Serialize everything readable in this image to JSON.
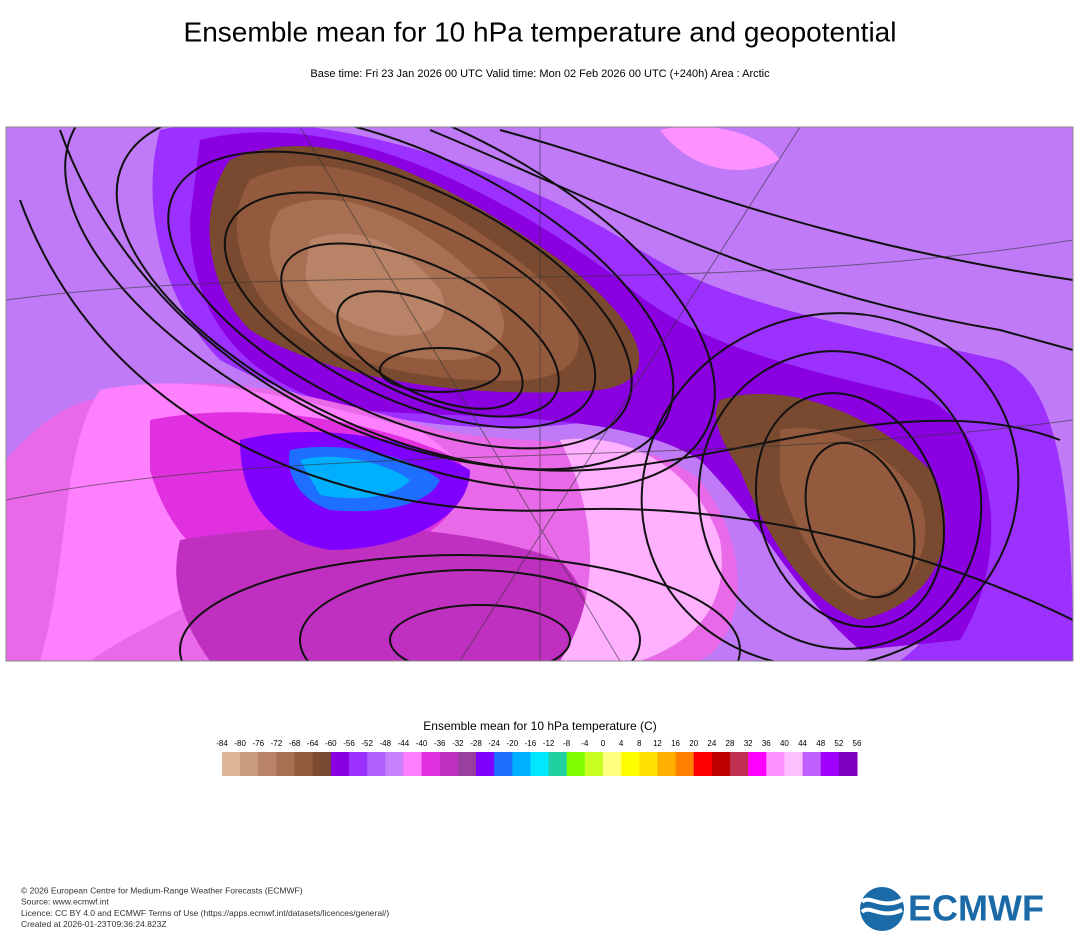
{
  "header": {
    "title": "Ensemble mean for 10 hPa temperature and geopotential",
    "subtitle": "Base time: Fri 23 Jan 2026 00 UTC Valid time: Mon 02 Feb 2026 00 UTC (+240h) Area : Arctic"
  },
  "colorbar": {
    "title": "Ensemble mean for 10 hPa temperature (C)",
    "ticks": [
      -84,
      -80,
      -76,
      -72,
      -68,
      -64,
      -60,
      -56,
      -52,
      -48,
      -44,
      -40,
      -36,
      -32,
      -28,
      -24,
      -20,
      -16,
      -12,
      -8,
      -4,
      0,
      4,
      8,
      12,
      16,
      20,
      24,
      28,
      32,
      36,
      40,
      44,
      48,
      52,
      56
    ],
    "colors": [
      "#dcb496",
      "#c99a7e",
      "#b88366",
      "#a86f52",
      "#935a3d",
      "#7a4a30",
      "#8a00e0",
      "#9b30ff",
      "#b060ff",
      "#c880ff",
      "#ff80ff",
      "#e030e0",
      "#c030c0",
      "#9a3fa0",
      "#8000ff",
      "#1e6fff",
      "#00b0ff",
      "#00e8ff",
      "#20d0a0",
      "#80ff00",
      "#c8ff20",
      "#ffff80",
      "#ffff00",
      "#ffe000",
      "#ffb000",
      "#ff8000",
      "#ff0000",
      "#c00000",
      "#c03050",
      "#ff00ff",
      "#ff90ff",
      "#ffc0ff",
      "#c060ff",
      "#a000ff",
      "#8000c0"
    ]
  },
  "footer": {
    "lines": [
      "© 2026 European Centre for Medium-Range Weather Forecasts (ECMWF)",
      "Source: www.ecmwf.int",
      "Licence: CC BY 4.0 and ECMWF Terms of Use (https://apps.ecmwf.int/datasets/licences/general/)",
      "Created at 2026-01-23T09:36:24.823Z"
    ]
  },
  "logo": {
    "text": "ECMWF"
  }
}
